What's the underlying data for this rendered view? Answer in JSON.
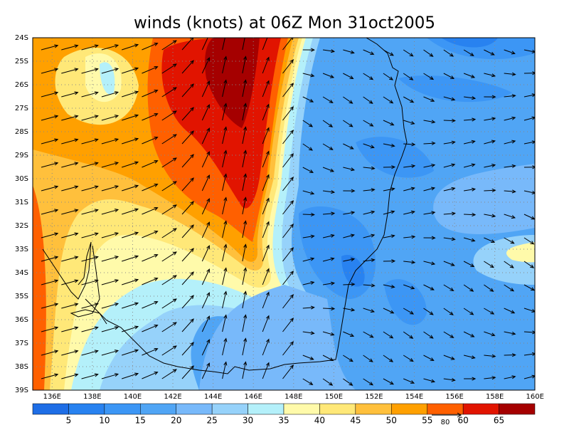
{
  "title": "winds (knots) at 06Z Mon 31oct2005",
  "lat_labels": [
    "24S",
    "25S",
    "26S",
    "27S",
    "28S",
    "29S",
    "30S",
    "31S",
    "32S",
    "33S",
    "34S",
    "35S",
    "36S",
    "37S",
    "38S",
    "39S"
  ],
  "lon_labels": [
    "136E",
    "138E",
    "140E",
    "142E",
    "144E",
    "146E",
    "148E",
    "150E",
    "152E",
    "154E",
    "156E",
    "158E",
    "160E"
  ],
  "colorbar": {
    "levels": [
      5,
      10,
      15,
      20,
      25,
      30,
      35,
      40,
      45,
      50,
      55,
      60,
      65
    ],
    "colors": [
      "#1e6ee6",
      "#2882f0",
      "#3c96f5",
      "#50a5f5",
      "#78b9fa",
      "#96d2fa",
      "#b4f0fa",
      "#fffaaa",
      "#ffe878",
      "#ffc03c",
      "#ffa000",
      "#ff6000",
      "#e11400",
      "#a50000"
    ]
  },
  "reference_vector": {
    "label": "80"
  }
}
